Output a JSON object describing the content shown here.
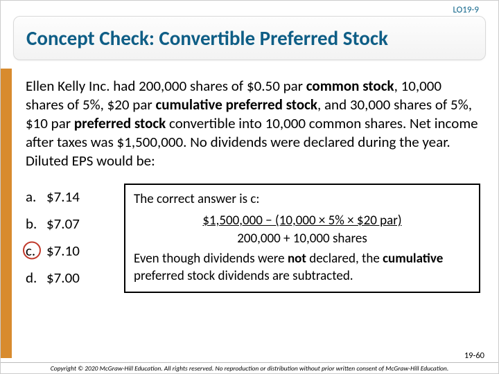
{
  "lo_tag": "LO19-9",
  "title": "Concept Check: Convertible Preferred Stock",
  "stem": {
    "p1a": "Ellen Kelly Inc. had 200,000 shares of $0.50 par ",
    "p1b": "common stock",
    "p1c": ", 10,000 shares of 5%, $20 par ",
    "p1d": "cumulative preferred stock",
    "p1e": ", and 30,000 shares of 5%, $10 par ",
    "p1f": "preferred stock",
    "p1g": " convertible into 10,000 common shares. Net income after taxes was $1,500,000. No dividends were declared during the year. Diluted EPS would be:"
  },
  "options": {
    "a": {
      "letter": "a.",
      "value": "$7.14"
    },
    "b": {
      "letter": "b.",
      "value": "$7.07"
    },
    "c": {
      "letter": "c.",
      "value": "$7.10"
    },
    "d": {
      "letter": "d.",
      "value": "$7.00"
    }
  },
  "answer": {
    "lead": "The correct answer is c:",
    "numerator": "$1,500,000 − (10,000 × 5% × $20 par)",
    "denominator": "200,000 + 10,000 shares",
    "expl_a": "Even though dividends were ",
    "expl_b": "not",
    "expl_c": " declared, the ",
    "expl_d": "cumulative",
    "expl_e": " preferred stock dividends are subtracted."
  },
  "slide_num": "19-60",
  "copyright": "Copyright © 2020 McGraw-Hill Education. All rights reserved. No reproduction or distribution without prior written consent of McGraw-Hill Education."
}
